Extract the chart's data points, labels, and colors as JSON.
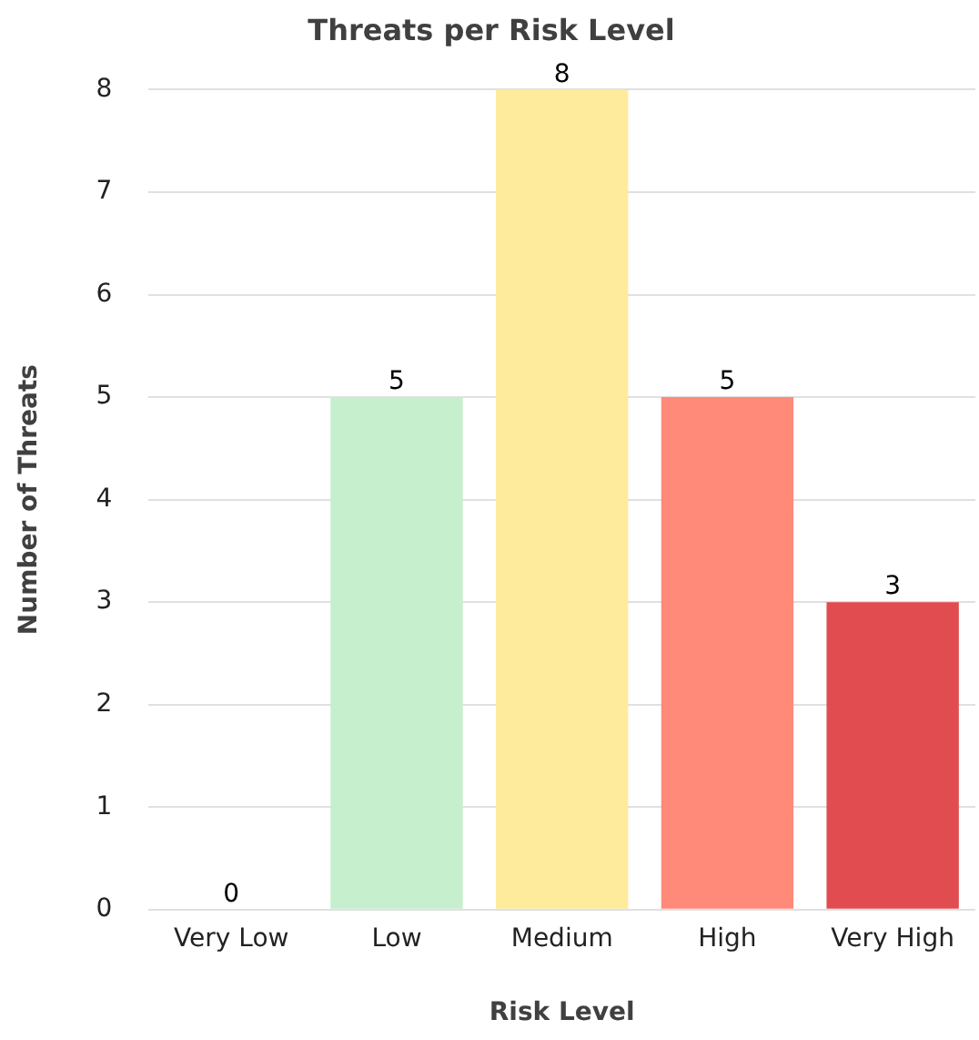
{
  "chart_data": {
    "type": "bar",
    "title": "Threats per Risk Level",
    "xlabel": "Risk Level",
    "ylabel": "Number of Threats",
    "categories": [
      "Very Low",
      "Low",
      "Medium",
      "High",
      "Very High"
    ],
    "values": [
      0,
      5,
      8,
      5,
      3
    ],
    "colors": [
      "#63be7b",
      "#c6efce",
      "#ffeb9c",
      "#ff8a7a",
      "#e04c4f"
    ],
    "ylim": [
      0,
      8
    ],
    "yticks": [
      0,
      1,
      2,
      3,
      4,
      5,
      6,
      7,
      8
    ],
    "grid": "y",
    "data_labels": true
  }
}
